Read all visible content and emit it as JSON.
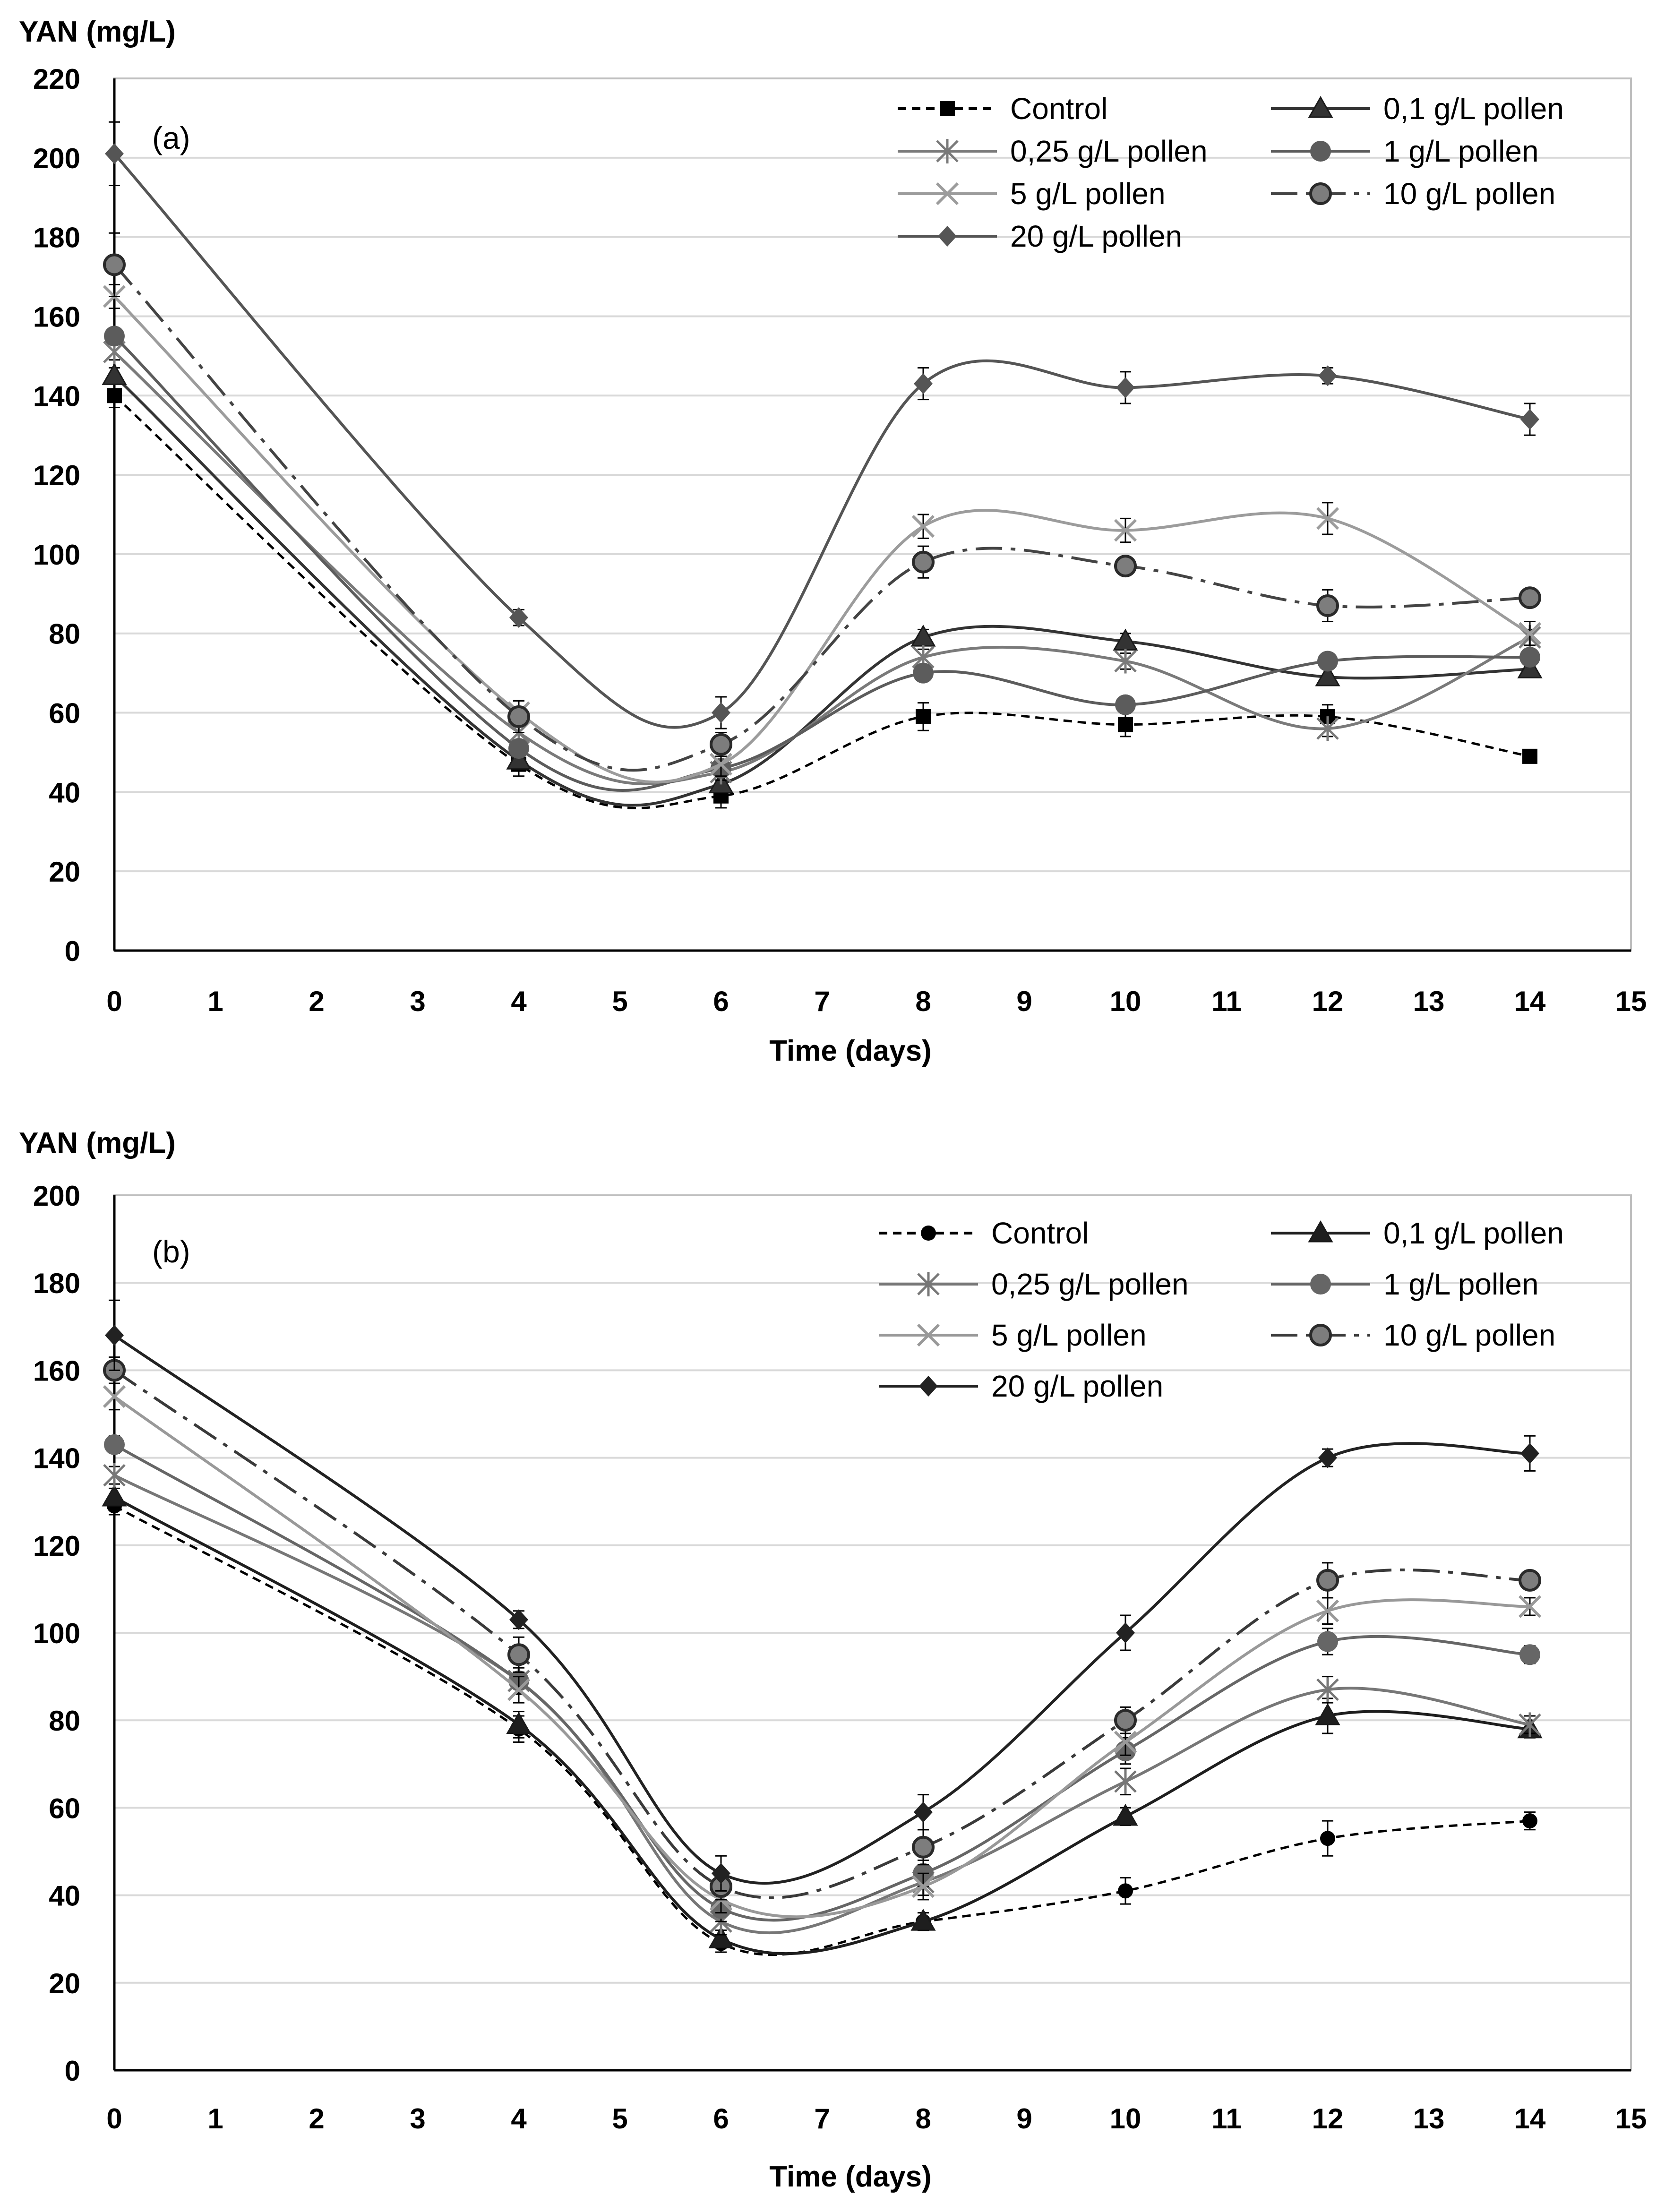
{
  "chart_data": [
    {
      "type": "line",
      "panel_label": "(a)",
      "ylabel": "YAN (mg/L)",
      "xlabel": "Time (days)",
      "xlim": [
        0,
        15
      ],
      "ylim": [
        0,
        220
      ],
      "xticks": [
        "0",
        "1",
        "2",
        "3",
        "4",
        "5",
        "6",
        "7",
        "8",
        "9",
        "10",
        "11",
        "12",
        "13",
        "14",
        "15"
      ],
      "yticks": [
        "0",
        "20",
        "40",
        "60",
        "80",
        "100",
        "120",
        "140",
        "160",
        "180",
        "200",
        "220"
      ],
      "grid": "horizontal",
      "legend_position": "top-right",
      "x": [
        0,
        4,
        6,
        8,
        10,
        12,
        14
      ],
      "series": [
        {
          "name": "Control",
          "values": [
            140,
            47,
            39,
            59,
            57,
            59,
            49
          ],
          "errors": [
            3,
            3,
            3,
            3.5,
            3,
            3,
            1.5
          ],
          "color": "#000000",
          "dash": "dotted",
          "marker": "square"
        },
        {
          "name": "0,1 g/L pollen",
          "values": [
            145,
            48,
            42,
            79,
            78,
            69,
            71
          ],
          "errors": [
            2,
            2,
            2,
            2,
            2,
            2,
            2
          ],
          "color": "#333333",
          "dash": "solid",
          "marker": "triangle"
        },
        {
          "name": "0,25 g/L pollen",
          "values": [
            151,
            55,
            45,
            74,
            73,
            56,
            79
          ],
          "errors": [
            2,
            2,
            2,
            2,
            2,
            2,
            2
          ],
          "color": "#7a7a7a",
          "dash": "solid",
          "marker": "asterisk"
        },
        {
          "name": "1 g/L pollen",
          "values": [
            155,
            51,
            46,
            70,
            62,
            73,
            74
          ],
          "errors": [
            2,
            2,
            2,
            2,
            2,
            2,
            2
          ],
          "color": "#5c5c5c",
          "dash": "solid",
          "marker": "circle"
        },
        {
          "name": "5 g/L pollen",
          "values": [
            165,
            60,
            47,
            107,
            106,
            109,
            80
          ],
          "errors": [
            3,
            3,
            3,
            3,
            3,
            4,
            3
          ],
          "color": "#9c9c9c",
          "dash": "solid",
          "marker": "x"
        },
        {
          "name": "10 g/L pollen",
          "values": [
            173,
            59,
            52,
            98,
            97,
            87,
            89
          ],
          "errors": [
            8,
            4,
            3,
            4,
            2,
            4,
            2
          ],
          "color": "#444444",
          "dash": "dashdot",
          "marker": "circle-outline"
        },
        {
          "name": "20 g/L pollen",
          "values": [
            201,
            84,
            60,
            143,
            142,
            145,
            134
          ],
          "errors": [
            8,
            2,
            4,
            4,
            4,
            2,
            4
          ],
          "color": "#555555",
          "dash": "solid",
          "marker": "diamond"
        }
      ]
    },
    {
      "type": "line",
      "panel_label": "(b)",
      "ylabel": "YAN (mg/L)",
      "xlabel": "Time (days)",
      "xlim": [
        0,
        15
      ],
      "ylim": [
        0,
        200
      ],
      "xticks": [
        "0",
        "1",
        "2",
        "3",
        "4",
        "5",
        "6",
        "7",
        "8",
        "9",
        "10",
        "11",
        "12",
        "13",
        "14",
        "15"
      ],
      "yticks": [
        "0",
        "20",
        "40",
        "60",
        "80",
        "100",
        "120",
        "140",
        "160",
        "180",
        "200"
      ],
      "grid": "horizontal",
      "legend_position": "top-right",
      "x": [
        0,
        4,
        6,
        8,
        10,
        12,
        14
      ],
      "series": [
        {
          "name": "Control",
          "values": [
            129,
            78,
            29,
            34,
            41,
            53,
            57
          ],
          "errors": [
            2,
            3,
            2,
            2,
            3,
            4,
            2
          ],
          "color": "#000000",
          "dash": "dotted",
          "marker": "circle-small"
        },
        {
          "name": "0,1 g/L pollen",
          "values": [
            131,
            79,
            30,
            34,
            58,
            81,
            78
          ],
          "errors": [
            2,
            3,
            2,
            2,
            2,
            4,
            2
          ],
          "color": "#1e1e1e",
          "dash": "solid",
          "marker": "triangle"
        },
        {
          "name": "0,25 g/L pollen",
          "values": [
            136,
            89,
            34,
            43,
            66,
            87,
            79
          ],
          "errors": [
            2,
            3,
            3,
            3,
            3,
            3,
            2
          ],
          "color": "#777777",
          "dash": "solid",
          "marker": "asterisk"
        },
        {
          "name": "1 g/L pollen",
          "values": [
            143,
            89,
            37,
            45,
            73,
            98,
            95
          ],
          "errors": [
            2,
            3,
            3,
            3,
            3,
            3,
            2
          ],
          "color": "#666666",
          "dash": "solid",
          "marker": "circle"
        },
        {
          "name": "5 g/L pollen",
          "values": [
            154,
            87,
            39,
            42,
            75,
            105,
            106
          ],
          "errors": [
            3,
            3,
            3,
            3,
            3,
            3,
            2
          ],
          "color": "#999999",
          "dash": "solid",
          "marker": "x"
        },
        {
          "name": "10 g/L pollen",
          "values": [
            160,
            95,
            42,
            51,
            80,
            112,
            112
          ],
          "errors": [
            3,
            4,
            3,
            4,
            3,
            4,
            2
          ],
          "color": "#3a3a3a",
          "dash": "dashdot",
          "marker": "circle-outline"
        },
        {
          "name": "20 g/L pollen",
          "values": [
            168,
            103,
            45,
            59,
            100,
            140,
            141
          ],
          "errors": [
            8,
            2,
            4,
            4,
            4,
            2,
            4
          ],
          "color": "#222222",
          "dash": "solid",
          "marker": "diamond"
        }
      ]
    }
  ]
}
